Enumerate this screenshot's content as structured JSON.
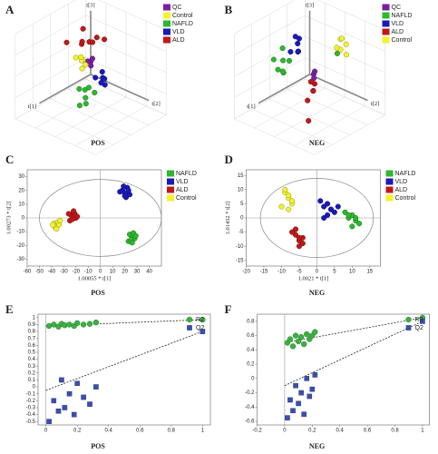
{
  "chart_data": [
    {
      "type": "scatter3d",
      "panel": "A",
      "caption": "POS",
      "x_label": "t[1]",
      "y_label": "t[2]",
      "z_label": "t[3]",
      "xlim": [
        -1,
        1
      ],
      "ylim": [
        -1,
        1
      ],
      "zlim": [
        -1,
        1
      ],
      "legend": "upper right",
      "series": [
        {
          "name": "QC",
          "color": "#7b1fa2",
          "x": [
            0.0,
            0.05,
            -0.05,
            0.02
          ],
          "y": [
            0.0,
            0.05,
            0.0,
            -0.05
          ],
          "z": [
            0.3,
            0.25,
            0.35,
            0.3
          ]
        },
        {
          "name": "Control",
          "color": "#f2f230",
          "x": [
            0.1,
            0.2,
            0.15,
            0.25,
            0.05,
            0.3
          ],
          "y": [
            -0.1,
            -0.05,
            0.0,
            -0.15,
            -0.2,
            0.05
          ],
          "z": [
            0.35,
            0.4,
            0.3,
            0.45,
            0.35,
            0.3
          ]
        },
        {
          "name": "NAFLD",
          "color": "#2db82d",
          "x": [
            0.5,
            0.6,
            0.45,
            0.7,
            0.55,
            0.4,
            0.65
          ],
          "y": [
            0.3,
            0.4,
            0.35,
            0.5,
            0.2,
            0.45,
            0.3
          ],
          "z": [
            0.0,
            -0.1,
            0.05,
            -0.15,
            0.0,
            -0.05,
            -0.3
          ]
        },
        {
          "name": "VLD",
          "color": "#1a1ab8",
          "x": [
            0.0,
            0.1,
            -0.1,
            0.05,
            0.15,
            -0.05
          ],
          "y": [
            0.3,
            0.35,
            0.2,
            0.4,
            0.25,
            0.3
          ],
          "z": [
            0.05,
            0.0,
            0.1,
            -0.05,
            0.1,
            0.0
          ]
        },
        {
          "name": "ALD",
          "color": "#c01818",
          "x": [
            -0.3,
            -0.4,
            -0.2,
            -0.5,
            -0.35,
            -0.1,
            -0.45,
            0.0
          ],
          "y": [
            -0.3,
            -0.2,
            -0.4,
            -0.1,
            -0.5,
            -0.3,
            -0.35,
            -0.6
          ],
          "z": [
            0.5,
            0.6,
            0.45,
            0.55,
            0.7,
            0.6,
            0.4,
            0.5
          ]
        }
      ]
    },
    {
      "type": "scatter3d",
      "panel": "B",
      "caption": "NEG",
      "x_label": "t[1]",
      "y_label": "t[2]",
      "z_label": "t[3]",
      "xlim": [
        -1,
        1
      ],
      "ylim": [
        -1,
        1
      ],
      "zlim": [
        -1,
        1
      ],
      "legend": "upper right",
      "series": [
        {
          "name": "QC",
          "color": "#7b1fa2",
          "x": [
            0.0,
            0.05,
            -0.03
          ],
          "y": [
            0.1,
            0.15,
            0.1
          ],
          "z": [
            0.05,
            0.0,
            0.1
          ]
        },
        {
          "name": "NAFLD",
          "color": "#2db82d",
          "x": [
            0.3,
            0.4,
            0.2,
            0.5,
            0.35,
            0.25,
            0.45,
            -0.1
          ],
          "y": [
            -0.4,
            -0.3,
            -0.5,
            -0.35,
            -0.2,
            -0.45,
            -0.5,
            0.6
          ],
          "z": [
            0.3,
            0.1,
            0.5,
            0.2,
            0.4,
            0.0,
            0.35,
            0.7
          ]
        },
        {
          "name": "VLD",
          "color": "#1a1ab8",
          "x": [
            0.0,
            0.1,
            -0.1,
            0.05,
            0.15,
            -0.05,
            0.2
          ],
          "y": [
            -0.3,
            -0.2,
            -0.35,
            -0.25,
            -0.15,
            -0.4,
            -0.3
          ],
          "z": [
            0.6,
            0.5,
            0.65,
            0.45,
            0.55,
            0.7,
            0.5
          ]
        },
        {
          "name": "ALD",
          "color": "#c01818",
          "x": [
            0.2,
            0.3,
            0.25,
            0.35,
            0.4,
            0.6
          ],
          "y": [
            0.3,
            0.35,
            0.25,
            0.4,
            0.3,
            0.5
          ],
          "z": [
            0.0,
            -0.1,
            0.05,
            -0.05,
            -0.3,
            -0.6
          ]
        },
        {
          "name": "Control",
          "color": "#f2f230",
          "x": [
            -0.3,
            -0.35,
            -0.25,
            -0.4,
            -0.3,
            -0.2
          ],
          "y": [
            0.5,
            0.6,
            0.55,
            0.45,
            0.65,
            0.5
          ],
          "z": [
            0.9,
            0.8,
            0.7,
            0.85,
            0.6,
            0.75
          ]
        }
      ]
    },
    {
      "type": "score",
      "panel": "C",
      "caption": "POS",
      "x_label": "1.00055 * t[1]",
      "y_label": "1.00273 * t[2]",
      "xlim": [
        -60,
        50
      ],
      "ylim": [
        -35,
        35
      ],
      "xticks": [
        -60,
        -50,
        -40,
        -30,
        -20,
        -10,
        0,
        10,
        20,
        30,
        40
      ],
      "yticks": [
        -30,
        -20,
        -10,
        0,
        10,
        20,
        30
      ],
      "ellipse": [
        50,
        28
      ],
      "legend": "upper right",
      "series": [
        {
          "name": "NAFLD",
          "color": "#2db82d",
          "x": [
            24,
            26,
            28,
            23,
            27,
            25,
            29,
            26
          ],
          "y": [
            -12,
            -14,
            -15,
            -17,
            -11,
            -16,
            -13,
            -18
          ]
        },
        {
          "name": "VLD",
          "color": "#1a1ab8",
          "x": [
            18,
            20,
            22,
            24,
            16,
            21,
            19,
            23,
            20
          ],
          "y": [
            20,
            18,
            22,
            17,
            19,
            15,
            23,
            20,
            16
          ]
        },
        {
          "name": "ALD",
          "color": "#c01818",
          "x": [
            -24,
            -22,
            -20,
            -25,
            -21,
            -23,
            -19,
            -26,
            -22
          ],
          "y": [
            2,
            4,
            0,
            -2,
            3,
            -1,
            1,
            3,
            5
          ]
        },
        {
          "name": "Control",
          "color": "#f2f230",
          "x": [
            -38,
            -36,
            -35,
            -37,
            -34,
            -39,
            -33,
            -36
          ],
          "y": [
            -4,
            -6,
            -3,
            -7,
            -5,
            -5,
            -2,
            -8
          ]
        }
      ]
    },
    {
      "type": "score",
      "panel": "D",
      "caption": "NEG",
      "x_label": "1.0021 * t[1]",
      "y_label": "1.01432 * t[2]",
      "xlim": [
        -20,
        18
      ],
      "ylim": [
        -17,
        17
      ],
      "xticks": [
        -20,
        -15,
        -10,
        -5,
        0,
        5,
        10,
        15
      ],
      "yticks": [
        -15,
        -10,
        -5,
        0,
        5,
        10,
        15
      ],
      "ellipse": [
        16,
        14
      ],
      "legend": "upper right",
      "series": [
        {
          "name": "NAFLD",
          "color": "#2db82d",
          "x": [
            9,
            10,
            11,
            12,
            8,
            10,
            11,
            9
          ],
          "y": [
            0,
            1,
            -1,
            -2,
            2,
            -3,
            0,
            1
          ]
        },
        {
          "name": "VLD",
          "color": "#1a1ab8",
          "x": [
            2,
            3,
            4,
            5,
            1,
            3,
            4,
            6,
            2
          ],
          "y": [
            4,
            5,
            3,
            2,
            6,
            1,
            3,
            4,
            0
          ]
        },
        {
          "name": "ALD",
          "color": "#c01818",
          "x": [
            -6,
            -5,
            -4,
            -7,
            -5,
            -4,
            -6,
            -5
          ],
          "y": [
            -6,
            -8,
            -7,
            -5,
            -10,
            -9,
            -4,
            -7
          ]
        },
        {
          "name": "Control",
          "color": "#f2f230",
          "x": [
            -9,
            -8,
            -7,
            -10,
            -8,
            -9,
            -7,
            -8
          ],
          "y": [
            9,
            7,
            5,
            4,
            3,
            10,
            6,
            8
          ]
        }
      ]
    },
    {
      "type": "permutation",
      "panel": "E",
      "caption": "POS",
      "xlim": [
        -0.05,
        1.05
      ],
      "ylim": [
        -0.55,
        1.05
      ],
      "xticks": [
        0,
        0.2,
        0.4,
        0.6,
        0.8,
        1
      ],
      "yticks": [
        -0.5,
        -0.4,
        -0.3,
        -0.2,
        -0.1,
        0,
        0.1,
        0.2,
        0.3,
        0.4,
        0.5,
        0.6,
        0.7,
        0.8,
        0.9,
        1
      ],
      "legend": "upper right",
      "series": [
        {
          "name": "R2",
          "color": "#3cb043",
          "marker": "circle",
          "trend": [
            0.88,
            0.97
          ],
          "x": [
            0.02,
            0.05,
            0.08,
            0.1,
            0.12,
            0.15,
            0.18,
            0.2,
            0.24,
            0.28,
            0.32,
            1
          ],
          "y": [
            0.88,
            0.9,
            0.87,
            0.91,
            0.89,
            0.9,
            0.88,
            0.92,
            0.9,
            0.91,
            0.93,
            0.97
          ]
        },
        {
          "name": "Q2",
          "color": "#3a4fb0",
          "marker": "square",
          "trend": [
            -0.05,
            0.8
          ],
          "x": [
            0.02,
            0.05,
            0.08,
            0.1,
            0.12,
            0.15,
            0.18,
            0.2,
            0.24,
            0.28,
            0.32,
            1
          ],
          "y": [
            -0.5,
            -0.2,
            -0.35,
            0.1,
            -0.3,
            -0.1,
            -0.4,
            0.05,
            -0.15,
            -0.25,
            0.0,
            0.8
          ]
        }
      ]
    },
    {
      "type": "permutation",
      "panel": "F",
      "caption": "NEG",
      "xlim": [
        -0.2,
        1.05
      ],
      "ylim": [
        -0.65,
        0.9
      ],
      "xticks": [
        -0.2,
        0,
        0.2,
        0.4,
        0.6,
        0.8,
        1
      ],
      "yticks": [
        -0.6,
        -0.4,
        -0.2,
        0,
        0.2,
        0.4,
        0.6,
        0.8
      ],
      "legend": "upper right",
      "series": [
        {
          "name": "R2",
          "color": "#3cb043",
          "marker": "circle",
          "trend": [
            0.5,
            0.85
          ],
          "x": [
            0.02,
            0.04,
            0.06,
            0.08,
            0.1,
            0.12,
            0.14,
            0.16,
            0.18,
            0.2,
            0.22,
            1
          ],
          "y": [
            0.5,
            0.55,
            0.45,
            0.6,
            0.52,
            0.58,
            0.48,
            0.62,
            0.55,
            0.6,
            0.65,
            0.85
          ]
        },
        {
          "name": "Q2",
          "color": "#3a4fb0",
          "marker": "square",
          "trend": [
            -0.1,
            0.8
          ],
          "x": [
            0.02,
            0.04,
            0.06,
            0.08,
            0.1,
            0.12,
            0.14,
            0.16,
            0.18,
            0.2,
            0.22,
            1
          ],
          "y": [
            -0.55,
            -0.3,
            -0.45,
            -0.1,
            -0.35,
            -0.2,
            -0.5,
            0.0,
            -0.25,
            -0.15,
            0.05,
            0.8
          ]
        }
      ]
    }
  ]
}
